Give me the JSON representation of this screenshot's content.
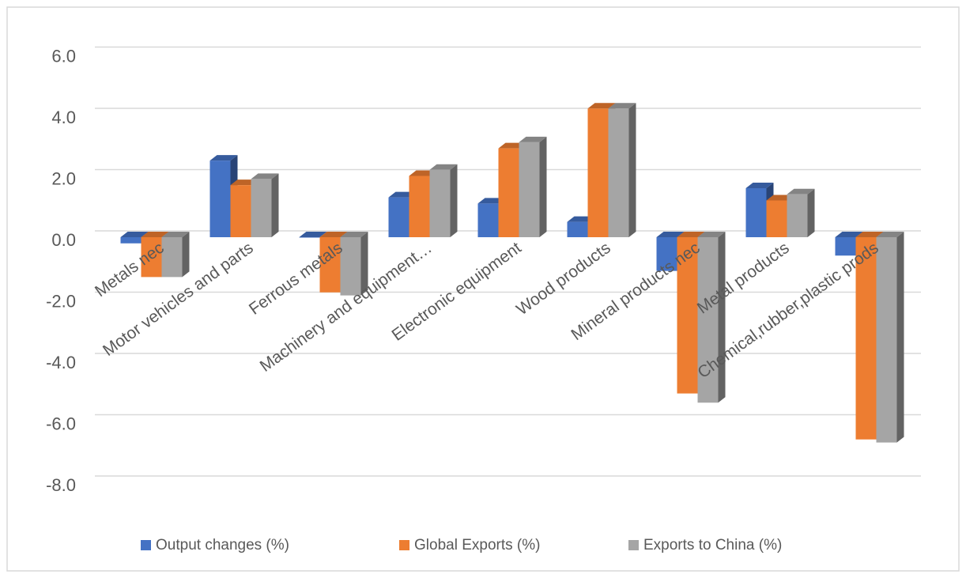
{
  "chart_data": {
    "type": "bar3d",
    "categories": [
      "Metals nec",
      "Motor vehicles and parts",
      "Ferrous metals",
      "Machinery and equipment…",
      "Electronic equipment",
      "Wood products",
      "Mineral products nec",
      "Metal products",
      "Chemical,rubber,plastic prods"
    ],
    "series": [
      {
        "name": "Output changes (%)",
        "color": "#4472c4",
        "values": [
          -0.2,
          2.5,
          0.0,
          1.3,
          1.1,
          0.5,
          -1.1,
          1.6,
          -0.6
        ]
      },
      {
        "name": "Global Exports (%)",
        "color": "#ed7d31",
        "values": [
          -1.3,
          1.7,
          -1.8,
          2.0,
          2.9,
          4.2,
          -5.1,
          1.2,
          -6.6
        ]
      },
      {
        "name": "Exports to China (%)",
        "color": "#a5a5a5",
        "values": [
          -1.3,
          1.9,
          -1.9,
          2.2,
          3.1,
          4.2,
          -5.4,
          1.4,
          -6.7
        ]
      }
    ],
    "ylim": [
      -8,
      6
    ],
    "yticks": [
      {
        "value": -8,
        "label": "-8.0"
      },
      {
        "value": -6,
        "label": "-6.0"
      },
      {
        "value": -4,
        "label": "-4.0"
      },
      {
        "value": -2,
        "label": "-2.0"
      },
      {
        "value": 0,
        "label": "0.0"
      },
      {
        "value": 2,
        "label": "2.0"
      },
      {
        "value": 4,
        "label": "4.0"
      },
      {
        "value": 6,
        "label": "6.0"
      }
    ],
    "grid": true,
    "legend": "bottom"
  }
}
